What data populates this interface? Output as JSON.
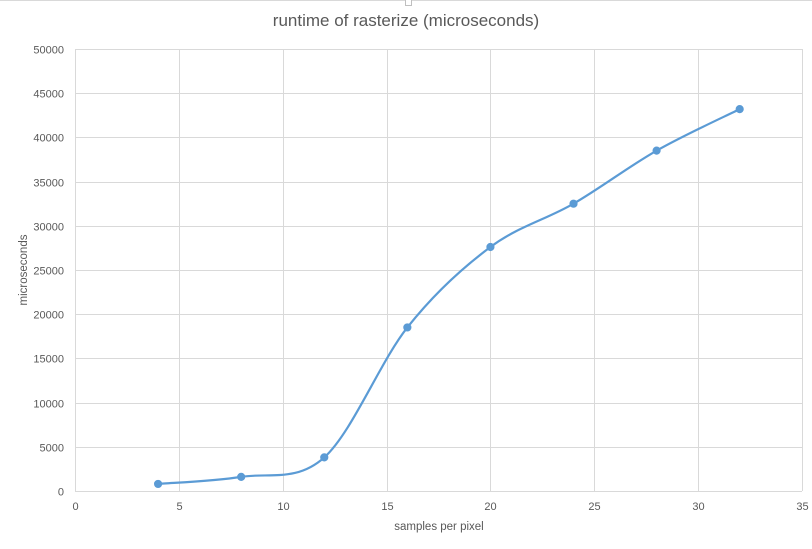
{
  "chart_data": {
    "type": "line",
    "smooth": true,
    "markers": true,
    "title": "runtime of rasterize (microseconds)",
    "xlabel": "samples per pixel",
    "ylabel": "microseconds",
    "xlim": [
      0,
      35
    ],
    "ylim": [
      0,
      50000
    ],
    "xticks": [
      0,
      5,
      10,
      15,
      20,
      25,
      30,
      35
    ],
    "yticks": [
      0,
      5000,
      10000,
      15000,
      20000,
      25000,
      30000,
      35000,
      40000,
      45000,
      50000
    ],
    "grid": true,
    "legend": "none",
    "series": [
      {
        "color": "#5b9bd5",
        "x": [
          4,
          8,
          12,
          16,
          20,
          24,
          28,
          32
        ],
        "y": [
          800,
          1600,
          3800,
          18500,
          27600,
          32500,
          38500,
          43200
        ]
      }
    ]
  },
  "colors": {
    "series": "#5b9bd5",
    "grid": "#d9d9d9",
    "text": "#595959"
  }
}
